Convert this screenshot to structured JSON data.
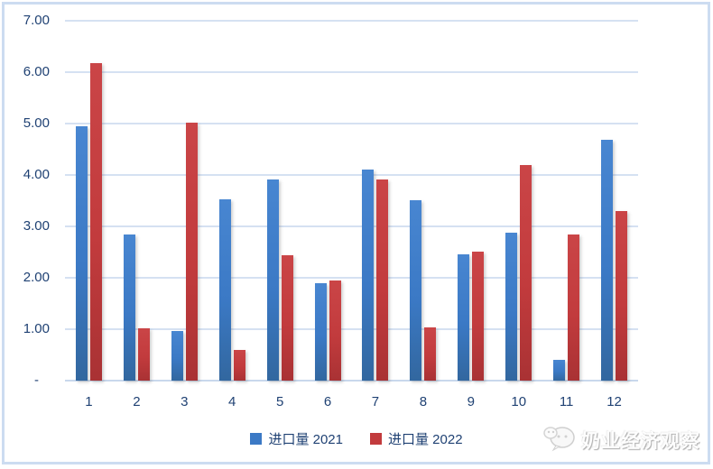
{
  "chart_data": {
    "type": "bar",
    "title": "",
    "xlabel": "",
    "ylabel": "",
    "categories": [
      "1",
      "2",
      "3",
      "4",
      "5",
      "6",
      "7",
      "8",
      "9",
      "10",
      "11",
      "12"
    ],
    "series": [
      {
        "name": "进口量 2021",
        "color": "#3b79c5",
        "values": [
          4.95,
          2.84,
          0.97,
          3.53,
          3.92,
          1.9,
          4.1,
          3.5,
          2.46,
          2.88,
          0.41,
          4.68
        ]
      },
      {
        "name": "进口量 2022",
        "color": "#c23b3d",
        "values": [
          6.17,
          1.02,
          5.01,
          0.6,
          2.43,
          1.94,
          3.92,
          1.03,
          2.5,
          4.2,
          2.84,
          3.3
        ]
      }
    ],
    "ylim": [
      0,
      7
    ],
    "y_ticks": [
      "7.00",
      "6.00",
      "5.00",
      "4.00",
      "3.00",
      "2.00",
      "1.00",
      "-"
    ],
    "grid": true,
    "legend_position": "bottom"
  },
  "watermark": {
    "icon": "wechat-icon",
    "text": "奶业经济观察"
  },
  "colors": {
    "axis_text": "#1f4173",
    "gridline": "#d5e1f2",
    "frame_border": "#ccdcf1",
    "series_2021": "#3b79c5",
    "series_2022": "#c23b3d"
  }
}
